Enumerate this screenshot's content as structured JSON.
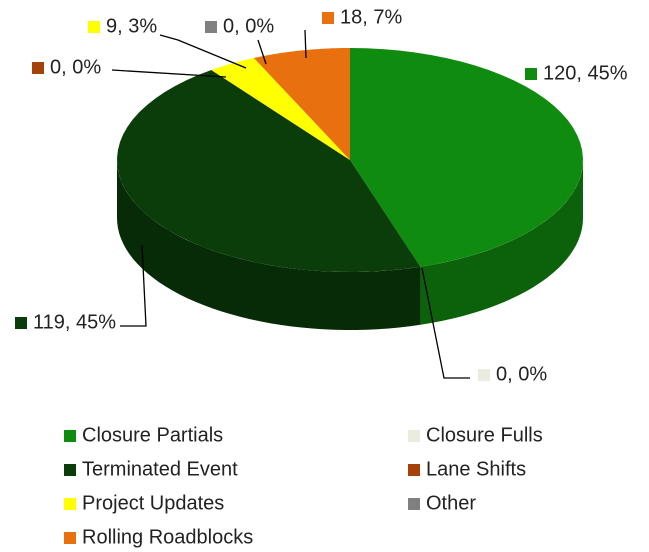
{
  "chart_data": {
    "type": "pie",
    "categories": [
      "Closure Partials",
      "Closure Fulls",
      "Terminated Event",
      "Lane Shifts",
      "Project Updates",
      "Other",
      "Rolling Roadblocks"
    ],
    "values": [
      120,
      0,
      119,
      0,
      9,
      0,
      18
    ],
    "value_labels": [
      "120, 45%",
      "0, 0%",
      "119, 45%",
      "0, 0%",
      "9, 3%",
      "0, 0%",
      "18, 7%"
    ],
    "colors": [
      "#0f8c0f",
      "#ecebdf",
      "#0a3d0a",
      "#a5420a",
      "#ffff00",
      "#808080",
      "#e8700f"
    ],
    "legend": "bottom"
  }
}
